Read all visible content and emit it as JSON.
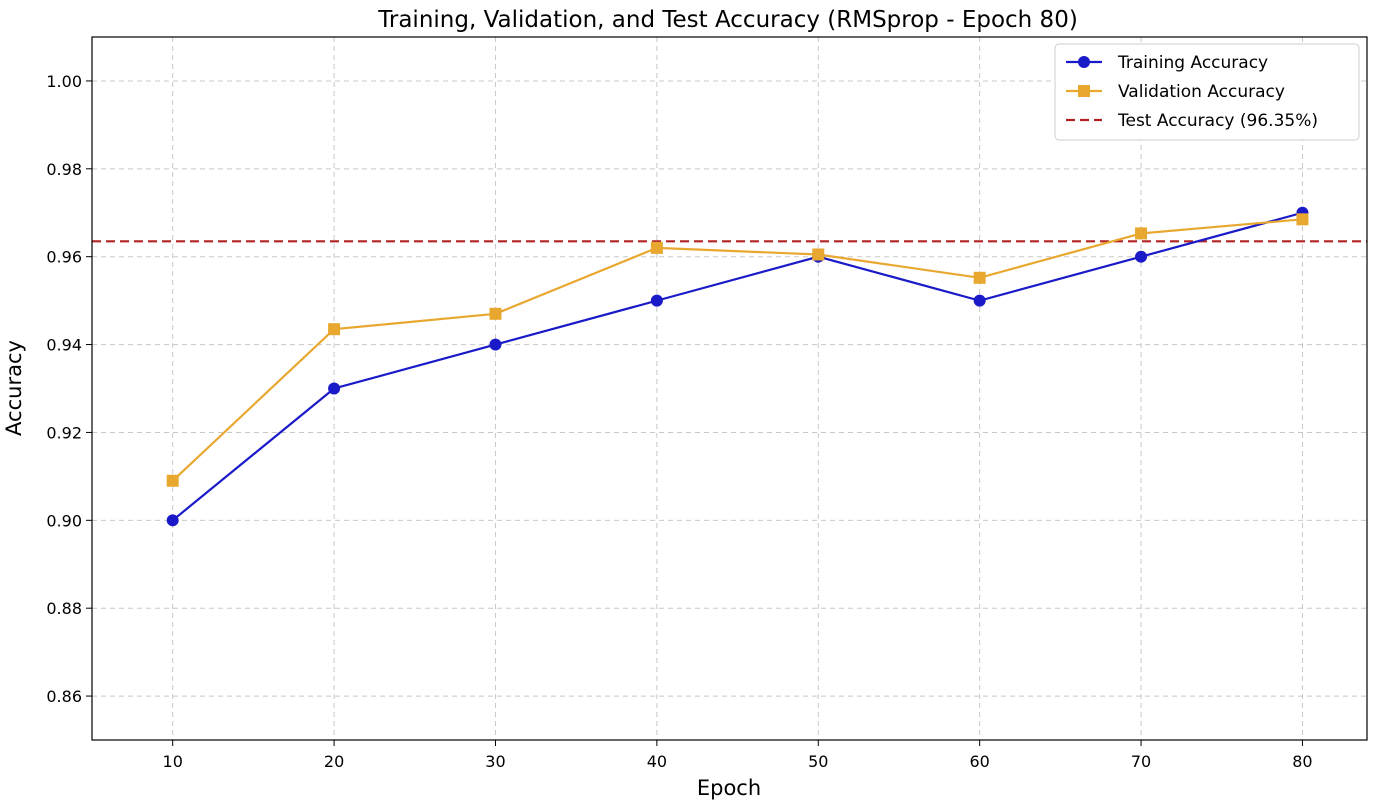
{
  "chart_data": {
    "type": "line",
    "title": "Training, Validation, and Test Accuracy (RMSprop - Epoch 80)",
    "xlabel": "Epoch",
    "ylabel": "Accuracy",
    "x": [
      10,
      20,
      30,
      40,
      50,
      60,
      70,
      80
    ],
    "xticks": [
      "10",
      "20",
      "30",
      "40",
      "50",
      "60",
      "70",
      "80"
    ],
    "xlim": [
      5,
      84
    ],
    "ylim": [
      0.85,
      1.01
    ],
    "yticks": [
      "0.86",
      "0.88",
      "0.90",
      "0.92",
      "0.94",
      "0.96",
      "0.98",
      "1.00"
    ],
    "grid": true,
    "legend_position": "top-right",
    "series": [
      {
        "name": "Training Accuracy",
        "color": "#1a1ac8",
        "marker": "circle",
        "values": [
          0.9,
          0.93,
          0.94,
          0.95,
          0.96,
          0.95,
          0.96,
          0.97
        ]
      },
      {
        "name": "Validation Accuracy",
        "color": "#e8a830",
        "marker": "square",
        "values": [
          0.909,
          0.9435,
          0.947,
          0.962,
          0.9605,
          0.9552,
          0.9653,
          0.9685
        ]
      }
    ],
    "reference_lines": [
      {
        "name": "Test Accuracy (96.35%)",
        "value": 0.9635,
        "color": "#b22222",
        "style": "dashed"
      }
    ]
  }
}
